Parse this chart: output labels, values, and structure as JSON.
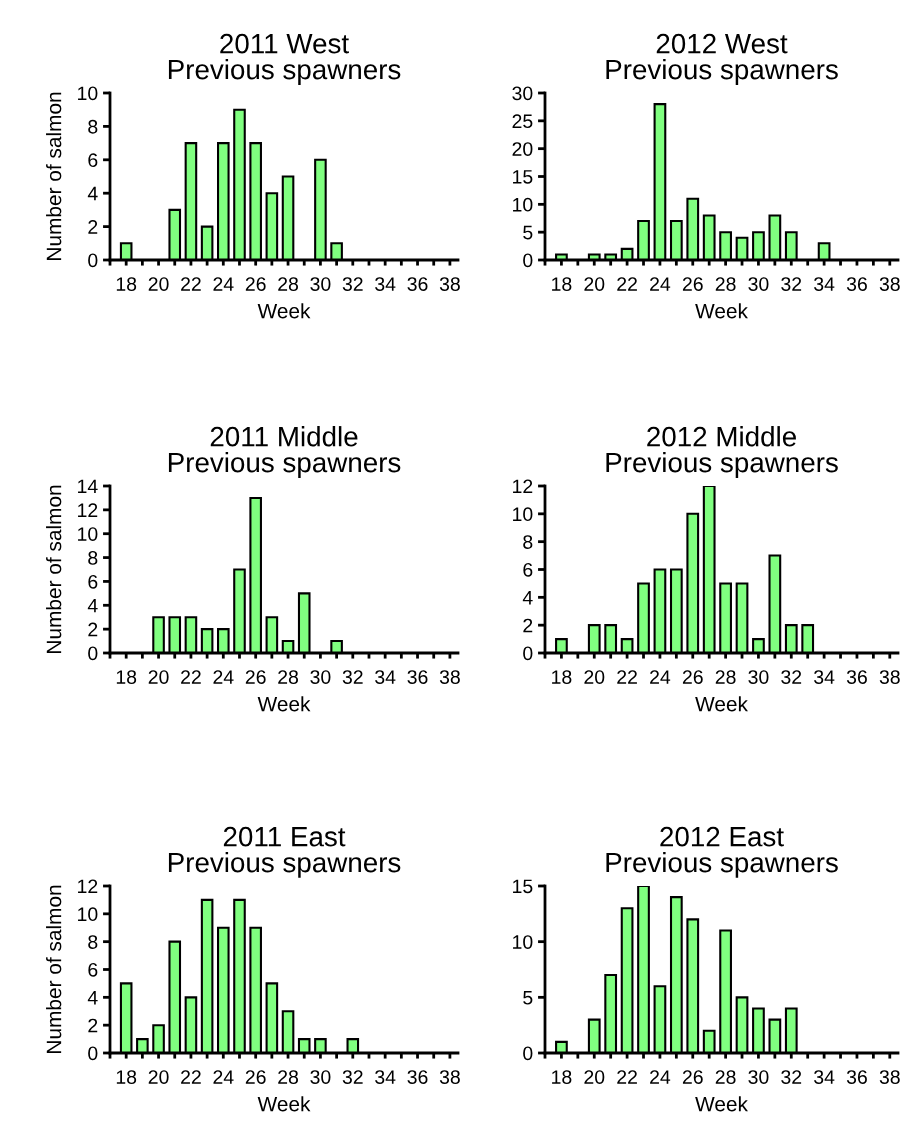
{
  "chart_data": [
    {
      "type": "bar",
      "title": "2011 West\nPrevious spawners",
      "xlabel": "Week",
      "ylabel": "Number of salmon",
      "color": "#80ff80",
      "x": [
        18,
        21,
        22,
        23,
        24,
        25,
        26,
        27,
        28,
        30,
        31
      ],
      "values": [
        1,
        3,
        7,
        2,
        7,
        9,
        7,
        4,
        5,
        6,
        1
      ],
      "xlim": [
        17,
        38.5
      ],
      "xticks": [
        {
          "value": 17,
          "label": null
        },
        18,
        {
          "value": 19,
          "label": null
        },
        20,
        {
          "value": 21,
          "label": null
        },
        22,
        {
          "value": 23,
          "label": null
        },
        24,
        {
          "value": 25,
          "label": null
        },
        26,
        {
          "value": 27,
          "label": null
        },
        28,
        {
          "value": 29,
          "label": null
        },
        30,
        {
          "value": 31,
          "label": null
        },
        32,
        {
          "value": 33,
          "label": null
        },
        34,
        {
          "value": 35,
          "label": null
        },
        36,
        {
          "value": 37,
          "label": null
        },
        38
      ],
      "ylim": [
        0,
        10
      ],
      "yticks": [
        0,
        2,
        4,
        6,
        8,
        10
      ]
    },
    {
      "type": "bar",
      "title": "2012 West\nPrevious spawners",
      "xlabel": "Week",
      "color": "#80ff80",
      "x": [
        18,
        20,
        21,
        22,
        23,
        24,
        25,
        26,
        27,
        28,
        29,
        30,
        31,
        32,
        34
      ],
      "values": [
        1,
        1,
        1,
        2,
        7,
        28,
        7,
        11,
        8,
        5,
        4,
        5,
        8,
        5,
        3
      ],
      "xlim": [
        17,
        38.5
      ],
      "xticks": [
        {
          "value": 17,
          "label": null
        },
        18,
        {
          "value": 19,
          "label": null
        },
        20,
        {
          "value": 21,
          "label": null
        },
        22,
        {
          "value": 23,
          "label": null
        },
        24,
        {
          "value": 25,
          "label": null
        },
        26,
        {
          "value": 27,
          "label": null
        },
        28,
        {
          "value": 29,
          "label": null
        },
        30,
        {
          "value": 31,
          "label": null
        },
        32,
        {
          "value": 33,
          "label": null
        },
        34,
        {
          "value": 35,
          "label": null
        },
        36,
        {
          "value": 37,
          "label": null
        },
        38
      ],
      "ylim": [
        0,
        30
      ],
      "yticks": [
        0,
        5,
        10,
        15,
        20,
        25,
        30
      ]
    },
    {
      "type": "bar",
      "title": "2011 Middle\nPrevious spawners",
      "xlabel": "Week",
      "ylabel": "Number of salmon",
      "color": "#80ff80",
      "x": [
        20,
        21,
        22,
        23,
        24,
        25,
        26,
        27,
        28,
        29,
        31
      ],
      "values": [
        3,
        3,
        3,
        2,
        2,
        7,
        13,
        3,
        1,
        5,
        1
      ],
      "xlim": [
        17,
        38.5
      ],
      "xticks": [
        {
          "value": 17,
          "label": null
        },
        18,
        {
          "value": 19,
          "label": null
        },
        20,
        {
          "value": 21,
          "label": null
        },
        22,
        {
          "value": 23,
          "label": null
        },
        24,
        {
          "value": 25,
          "label": null
        },
        26,
        {
          "value": 27,
          "label": null
        },
        28,
        {
          "value": 29,
          "label": null
        },
        30,
        {
          "value": 31,
          "label": null
        },
        32,
        {
          "value": 33,
          "label": null
        },
        34,
        {
          "value": 35,
          "label": null
        },
        36,
        {
          "value": 37,
          "label": null
        },
        38
      ],
      "ylim": [
        0,
        14
      ],
      "yticks": [
        0,
        2,
        4,
        6,
        8,
        10,
        12,
        14
      ]
    },
    {
      "type": "bar",
      "title": "2012 Middle\nPrevious spawners",
      "xlabel": "Week",
      "color": "#80ff80",
      "x": [
        18,
        20,
        21,
        22,
        23,
        24,
        25,
        26,
        27,
        28,
        29,
        30,
        31,
        32,
        33
      ],
      "values": [
        1,
        2,
        2,
        1,
        5,
        6,
        6,
        10,
        12,
        5,
        5,
        1,
        7,
        2,
        2
      ],
      "xlim": [
        17,
        38.5
      ],
      "xticks": [
        {
          "value": 17,
          "label": null
        },
        18,
        {
          "value": 19,
          "label": null
        },
        20,
        {
          "value": 21,
          "label": null
        },
        22,
        {
          "value": 23,
          "label": null
        },
        24,
        {
          "value": 25,
          "label": null
        },
        26,
        {
          "value": 27,
          "label": null
        },
        28,
        {
          "value": 29,
          "label": null
        },
        30,
        {
          "value": 31,
          "label": null
        },
        32,
        {
          "value": 33,
          "label": null
        },
        34,
        {
          "value": 35,
          "label": null
        },
        36,
        {
          "value": 37,
          "label": null
        },
        38
      ],
      "ylim": [
        0,
        12
      ],
      "yticks": [
        0,
        2,
        4,
        6,
        8,
        10,
        12
      ]
    },
    {
      "type": "bar",
      "title": "2011 East\nPrevious spawners",
      "xlabel": "Week",
      "ylabel": "Number of salmon",
      "color": "#80ff80",
      "x": [
        18,
        19,
        20,
        21,
        22,
        23,
        24,
        25,
        26,
        27,
        28,
        29,
        30,
        32
      ],
      "values": [
        5,
        1,
        2,
        8,
        4,
        11,
        9,
        11,
        9,
        5,
        3,
        1,
        1,
        1
      ],
      "xlim": [
        17,
        38.5
      ],
      "xticks": [
        {
          "value": 17,
          "label": null
        },
        18,
        {
          "value": 19,
          "label": null
        },
        20,
        {
          "value": 21,
          "label": null
        },
        22,
        {
          "value": 23,
          "label": null
        },
        24,
        {
          "value": 25,
          "label": null
        },
        26,
        {
          "value": 27,
          "label": null
        },
        28,
        {
          "value": 29,
          "label": null
        },
        30,
        {
          "value": 31,
          "label": null
        },
        32,
        {
          "value": 33,
          "label": null
        },
        34,
        {
          "value": 35,
          "label": null
        },
        36,
        {
          "value": 37,
          "label": null
        },
        38
      ],
      "ylim": [
        0,
        12
      ],
      "yticks": [
        0,
        2,
        4,
        6,
        8,
        10,
        12
      ]
    },
    {
      "type": "bar",
      "title": "2012 East\nPrevious spawners",
      "xlabel": "Week",
      "color": "#80ff80",
      "x": [
        18,
        20,
        21,
        22,
        23,
        24,
        25,
        26,
        27,
        28,
        29,
        30,
        31,
        32
      ],
      "values": [
        1,
        3,
        7,
        13,
        15,
        6,
        14,
        12,
        2,
        11,
        5,
        4,
        3,
        4
      ],
      "xlim": [
        17,
        38.5
      ],
      "xticks": [
        {
          "value": 17,
          "label": null
        },
        18,
        {
          "value": 19,
          "label": null
        },
        20,
        {
          "value": 21,
          "label": null
        },
        22,
        {
          "value": 23,
          "label": null
        },
        24,
        {
          "value": 25,
          "label": null
        },
        26,
        {
          "value": 27,
          "label": null
        },
        28,
        {
          "value": 29,
          "label": null
        },
        30,
        {
          "value": 31,
          "label": null
        },
        32,
        {
          "value": 33,
          "label": null
        },
        34,
        {
          "value": 35,
          "label": null
        },
        36,
        {
          "value": 37,
          "label": null
        },
        38
      ],
      "ylim": [
        0,
        15
      ],
      "yticks": [
        0,
        5,
        10,
        15
      ]
    }
  ]
}
